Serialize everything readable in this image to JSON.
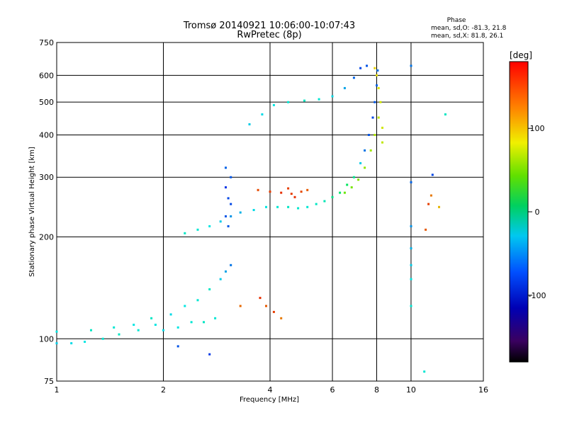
{
  "header": {
    "title_line1": "Tromsø 20140921 10:06:00-10:07:43",
    "title_line2": "RwPretec (8p)",
    "stats_heading": "Phase",
    "stats_o": "mean, sd,O: -81.3, 21.8",
    "stats_x": "mean, sd,X:  81.8, 26.1"
  },
  "chart_data": {
    "type": "scatter",
    "xlabel": "Frequency [MHz]",
    "ylabel": "Stationary phase Virtual Height [km]",
    "x_scale": "log",
    "y_scale": "log",
    "xlim": [
      1,
      16
    ],
    "ylim": [
      75,
      750
    ],
    "x_ticks": [
      1,
      2,
      4,
      6,
      8,
      10,
      16
    ],
    "x_tick_labels": [
      "1",
      "2",
      "4",
      "6",
      "8",
      "10",
      "16"
    ],
    "y_ticks": [
      75,
      100,
      200,
      300,
      400,
      500,
      600,
      750
    ],
    "y_tick_labels": [
      "75",
      "100",
      "200",
      "300",
      "400",
      "500",
      "600",
      "750"
    ],
    "grid": true,
    "colorbar": {
      "label": "[deg]",
      "range": [
        -180,
        180
      ],
      "ticks": [
        100,
        0,
        -100
      ],
      "tick_labels": [
        "100",
        "0",
        "-100"
      ]
    },
    "series": [
      {
        "points": [
          [
            1.0,
            97,
            -60
          ],
          [
            1.1,
            97,
            -55
          ],
          [
            1.2,
            98,
            -50
          ],
          [
            1.35,
            100,
            -45
          ],
          [
            1.5,
            103,
            -40
          ],
          [
            1.7,
            106,
            -45
          ],
          [
            1.9,
            110,
            -50
          ],
          [
            2.0,
            106,
            -55
          ],
          [
            2.2,
            108,
            -50
          ],
          [
            2.4,
            112,
            -45
          ],
          [
            2.6,
            112,
            -40
          ],
          [
            2.8,
            115,
            -45
          ],
          [
            1.0,
            105,
            -50
          ],
          [
            1.25,
            106,
            -40
          ],
          [
            1.45,
            108,
            -45
          ],
          [
            1.65,
            110,
            -50
          ],
          [
            1.85,
            115,
            -40
          ],
          [
            2.1,
            118,
            -55
          ],
          [
            2.3,
            125,
            -50
          ],
          [
            2.5,
            130,
            -45
          ],
          [
            2.7,
            140,
            -40
          ],
          [
            2.9,
            150,
            -60
          ],
          [
            3.0,
            158,
            -75
          ],
          [
            3.1,
            165,
            -90
          ]
        ]
      },
      {
        "points": [
          [
            2.3,
            205,
            -40
          ],
          [
            2.5,
            210,
            -45
          ],
          [
            2.7,
            215,
            -50
          ],
          [
            2.9,
            222,
            -60
          ],
          [
            3.1,
            230,
            -80
          ],
          [
            3.3,
            236,
            -70
          ],
          [
            3.6,
            240,
            -55
          ],
          [
            3.9,
            245,
            -50
          ],
          [
            4.2,
            245,
            -45
          ],
          [
            4.5,
            245,
            -40
          ],
          [
            4.8,
            243,
            -42
          ],
          [
            5.1,
            245,
            -45
          ],
          [
            5.4,
            250,
            -40
          ],
          [
            5.7,
            255,
            -35
          ],
          [
            6.0,
            262,
            -20
          ],
          [
            6.3,
            270,
            -10
          ],
          [
            6.6,
            285,
            -5
          ],
          [
            6.9,
            300,
            -20
          ],
          [
            7.2,
            330,
            -60
          ],
          [
            7.4,
            360,
            -90
          ],
          [
            7.6,
            400,
            -100
          ],
          [
            7.8,
            450,
            -105
          ],
          [
            7.9,
            500,
            -100
          ],
          [
            8.0,
            560,
            -95
          ],
          [
            8.05,
            620,
            -90
          ]
        ]
      },
      {
        "points": [
          [
            3.0,
            230,
            -100
          ],
          [
            3.05,
            260,
            -105
          ],
          [
            3.0,
            280,
            -110
          ],
          [
            3.1,
            300,
            -100
          ],
          [
            3.0,
            320,
            -95
          ],
          [
            3.05,
            215,
            -100
          ],
          [
            3.1,
            250,
            -105
          ]
        ]
      },
      {
        "points": [
          [
            6.5,
            270,
            60
          ],
          [
            6.8,
            280,
            65
          ],
          [
            7.1,
            295,
            70
          ],
          [
            7.4,
            320,
            75
          ],
          [
            7.7,
            360,
            80
          ],
          [
            7.9,
            400,
            85
          ],
          [
            8.1,
            450,
            90
          ],
          [
            8.2,
            500,
            95
          ],
          [
            8.1,
            550,
            100
          ],
          [
            8.0,
            600,
            105
          ],
          [
            7.9,
            630,
            110
          ],
          [
            8.3,
            420,
            95
          ],
          [
            8.3,
            380,
            90
          ]
        ]
      },
      {
        "points": [
          [
            3.7,
            275,
            155
          ],
          [
            4.0,
            272,
            160
          ],
          [
            4.3,
            270,
            165
          ],
          [
            4.6,
            268,
            160
          ],
          [
            4.9,
            272,
            155
          ],
          [
            5.1,
            275,
            150
          ],
          [
            4.7,
            262,
            165
          ],
          [
            4.5,
            278,
            160
          ]
        ]
      },
      {
        "points": [
          [
            3.5,
            430,
            -60
          ],
          [
            3.8,
            460,
            -55
          ],
          [
            4.1,
            490,
            -50
          ],
          [
            4.5,
            500,
            -45
          ],
          [
            5.0,
            505,
            -40
          ],
          [
            5.5,
            510,
            -45
          ],
          [
            6.0,
            520,
            -55
          ],
          [
            6.5,
            550,
            -75
          ],
          [
            6.9,
            590,
            -95
          ],
          [
            7.2,
            630,
            -105
          ],
          [
            7.5,
            640,
            -100
          ]
        ]
      },
      {
        "points": [
          [
            3.75,
            132,
            165
          ],
          [
            3.9,
            125,
            150
          ],
          [
            4.1,
            120,
            160
          ],
          [
            3.3,
            125,
            145
          ],
          [
            4.3,
            115,
            140
          ]
        ]
      },
      {
        "points": [
          [
            10.0,
            640,
            -90
          ],
          [
            10.0,
            290,
            -95
          ],
          [
            10.0,
            215,
            -80
          ],
          [
            10.0,
            185,
            -70
          ],
          [
            10.0,
            165,
            -60
          ],
          [
            10.0,
            150,
            -50
          ],
          [
            10.0,
            125,
            -45
          ],
          [
            11.5,
            305,
            -105
          ],
          [
            11.4,
            265,
            140
          ],
          [
            11.2,
            250,
            160
          ],
          [
            11.0,
            210,
            150
          ],
          [
            12.0,
            245,
            120
          ],
          [
            12.5,
            460,
            -40
          ],
          [
            10.9,
            80,
            -45
          ],
          [
            2.2,
            95,
            -100
          ],
          [
            2.7,
            90,
            -110
          ]
        ]
      }
    ]
  }
}
